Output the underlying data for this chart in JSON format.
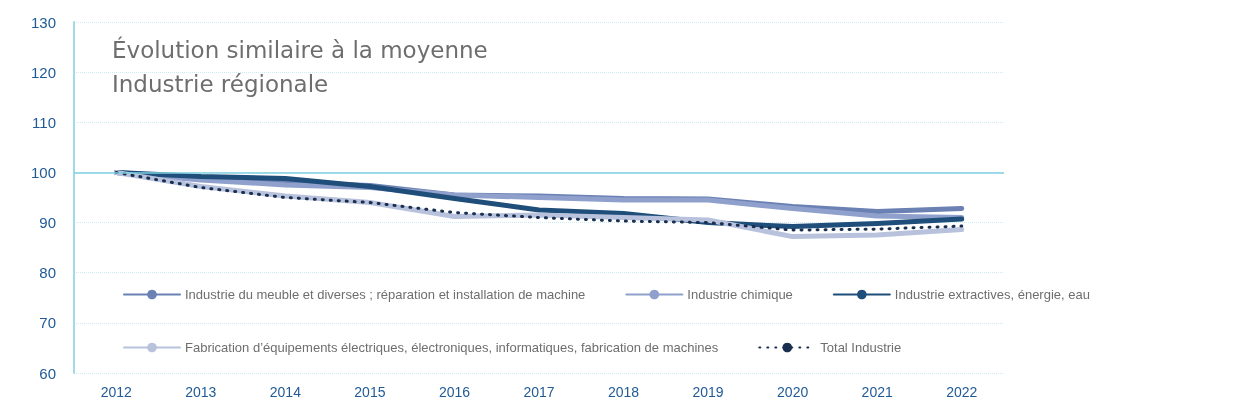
{
  "chart_data": {
    "type": "line",
    "title": "Évolution similaire à la moyenne\nIndustrie régionale",
    "categories": [
      "2012",
      "2013",
      "2014",
      "2015",
      "2016",
      "2017",
      "2018",
      "2019",
      "2020",
      "2021",
      "2022"
    ],
    "series": [
      {
        "name": "Industrie du meuble et diverses ; réparation et installation de machine",
        "color": "#6b80b3",
        "values": [
          100,
          98.8,
          98,
          97.4,
          95.5,
          95.3,
          94.8,
          94.7,
          93.2,
          92.2,
          92.8
        ]
      },
      {
        "name": "Industrie chimique",
        "color": "#8fa0cc",
        "values": [
          100,
          98.5,
          97.5,
          97,
          95.5,
          95,
          94.5,
          94.5,
          92.8,
          91.3,
          91
        ]
      },
      {
        "name": "Industrie extractives, énergie, eau",
        "color": "#1f4e7a",
        "values": [
          100,
          99.2,
          98.8,
          97.2,
          94.8,
          92.5,
          91.8,
          90,
          89.2,
          89.8,
          90.7
        ]
      },
      {
        "name": "Fabrication d’équipements électriques, électroniques, informatiques, fabrication de machines",
        "color": "#b8c2dc",
        "values": [
          100,
          97.2,
          95.3,
          94,
          91.2,
          91.5,
          91,
          90.5,
          87.2,
          87.5,
          88.6
        ]
      },
      {
        "name": "Total Industrie",
        "color": "#1a2f50",
        "line_style": "dotted",
        "values": [
          100,
          97,
          95,
          94,
          92,
          91,
          90.3,
          90,
          88.5,
          88.7,
          89.3
        ]
      }
    ],
    "ylim": [
      60,
      130
    ],
    "yticks": [
      60,
      70,
      80,
      90,
      100,
      110,
      120,
      130
    ],
    "ref_lines": [
      {
        "axis": "y",
        "value": 100,
        "color": "#7fcfe0"
      }
    ],
    "grid": "y",
    "legend": "bottom",
    "marker": "none",
    "line_style": "solid"
  }
}
